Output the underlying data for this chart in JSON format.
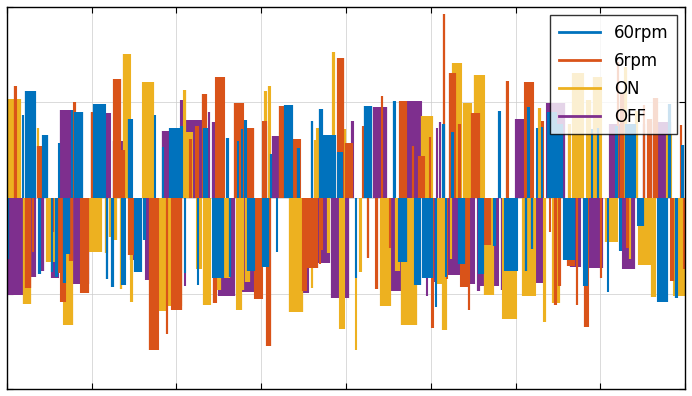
{
  "title": "",
  "xlabel": "",
  "ylabel": "",
  "colors": {
    "60rpm": "#0072BD",
    "6rpm": "#D95319",
    "ON": "#EDB120",
    "OFF": "#7E2F8E"
  },
  "legend_labels": [
    "60rpm",
    "6rpm",
    "ON",
    "OFF"
  ],
  "n_points": 2000,
  "seed": 42,
  "ylim": [
    -1.4,
    1.4
  ],
  "xlim": [
    0,
    2000
  ],
  "background_color": "#ffffff",
  "figsize": [
    6.92,
    3.96
  ],
  "dpi": 100,
  "grid_color": "#cccccc",
  "n_gridlines": 8
}
